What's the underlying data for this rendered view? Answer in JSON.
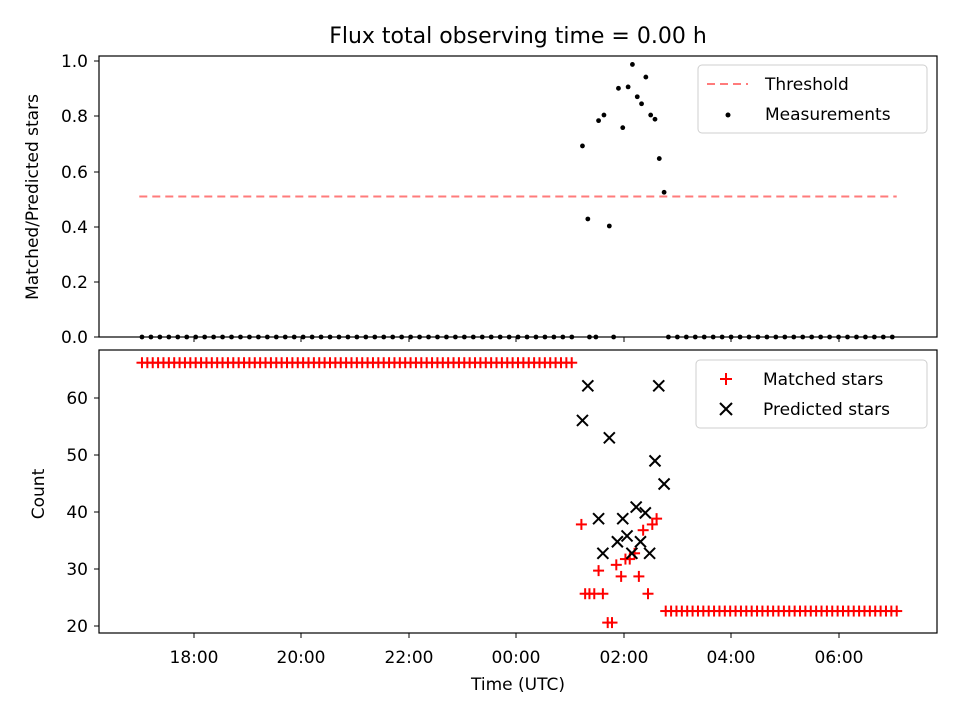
{
  "chart_data": [
    {
      "type": "scatter",
      "title": "Flux total observing time = 0.00 h",
      "xlabel": "",
      "ylabel": "Matched/Predicted stars",
      "ylim": [
        0,
        1.0
      ],
      "yticks": [
        "0.0",
        "0.2",
        "0.4",
        "0.6",
        "0.8",
        "1.0"
      ],
      "legend": {
        "placement": "top-right",
        "entries": [
          "Threshold",
          "Measurements"
        ]
      },
      "threshold": {
        "name": "Threshold",
        "value": 0.5,
        "x_start_h": -7.05,
        "x_end_h": 7.05,
        "color": "#ff7b7b"
      },
      "measurements_zero": {
        "name": "Measurements",
        "value": 0.0,
        "x_start_h": -7.0,
        "x_end_h": 1.05,
        "x_start2_h": 2.8,
        "x_end2_h": 7.1,
        "step_h": 0.1667
      },
      "measurements": [
        {
          "x_h": 1.2,
          "y": 0.68
        },
        {
          "x_h": 1.3,
          "y": 0.42
        },
        {
          "x_h": 1.33,
          "y": 0.0
        },
        {
          "x_h": 1.45,
          "y": 0.0
        },
        {
          "x_h": 1.5,
          "y": 0.77
        },
        {
          "x_h": 1.6,
          "y": 0.79
        },
        {
          "x_h": 1.7,
          "y": 0.395
        },
        {
          "x_h": 1.78,
          "y": 0.0
        },
        {
          "x_h": 1.87,
          "y": 0.885
        },
        {
          "x_h": 1.95,
          "y": 0.745
        },
        {
          "x_h": 2.05,
          "y": 0.89
        },
        {
          "x_h": 2.13,
          "y": 0.97
        },
        {
          "x_h": 2.22,
          "y": 0.855
        },
        {
          "x_h": 2.3,
          "y": 0.83
        },
        {
          "x_h": 2.38,
          "y": 0.925
        },
        {
          "x_h": 2.47,
          "y": 0.79
        },
        {
          "x_h": 2.55,
          "y": 0.775
        },
        {
          "x_h": 2.63,
          "y": 0.635
        },
        {
          "x_h": 2.72,
          "y": 0.515
        }
      ]
    },
    {
      "type": "scatter",
      "title": "",
      "xlabel": "Time (UTC)",
      "ylabel": "Count",
      "ylim": [
        19.2,
        68.2
      ],
      "yticks": [
        "20",
        "30",
        "40",
        "50",
        "60"
      ],
      "xlim_h": [
        -7.8,
        7.8
      ],
      "xticks": [
        "18:00",
        "20:00",
        "22:00",
        "00:00",
        "02:00",
        "04:00",
        "06:00"
      ],
      "legend": {
        "placement": "top-right",
        "entries": [
          "Matched stars",
          "Predicted stars"
        ]
      },
      "matched_constant": [
        {
          "value": 66,
          "x_start_h": -7.0,
          "x_end_h": 1.05,
          "step_h": 0.1
        },
        {
          "value": 23,
          "x_start_h": 2.75,
          "x_end_h": 7.1,
          "step_h": 0.1
        }
      ],
      "matched": [
        {
          "x_h": 1.18,
          "y": 38
        },
        {
          "x_h": 1.25,
          "y": 26
        },
        {
          "x_h": 1.33,
          "y": 26
        },
        {
          "x_h": 1.42,
          "y": 26
        },
        {
          "x_h": 1.5,
          "y": 30
        },
        {
          "x_h": 1.58,
          "y": 26
        },
        {
          "x_h": 1.67,
          "y": 21
        },
        {
          "x_h": 1.75,
          "y": 21
        },
        {
          "x_h": 1.83,
          "y": 31
        },
        {
          "x_h": 1.92,
          "y": 29
        },
        {
          "x_h": 2.0,
          "y": 32
        },
        {
          "x_h": 2.08,
          "y": 32
        },
        {
          "x_h": 2.17,
          "y": 33
        },
        {
          "x_h": 2.25,
          "y": 29
        },
        {
          "x_h": 2.33,
          "y": 37
        },
        {
          "x_h": 2.42,
          "y": 26
        },
        {
          "x_h": 2.5,
          "y": 38
        },
        {
          "x_h": 2.58,
          "y": 39
        }
      ],
      "predicted": [
        {
          "x_h": 1.2,
          "y": 56
        },
        {
          "x_h": 1.3,
          "y": 62
        },
        {
          "x_h": 1.5,
          "y": 39
        },
        {
          "x_h": 1.58,
          "y": 33
        },
        {
          "x_h": 1.7,
          "y": 53
        },
        {
          "x_h": 1.85,
          "y": 35
        },
        {
          "x_h": 1.95,
          "y": 39
        },
        {
          "x_h": 2.03,
          "y": 36
        },
        {
          "x_h": 2.12,
          "y": 33
        },
        {
          "x_h": 2.2,
          "y": 41
        },
        {
          "x_h": 2.28,
          "y": 35
        },
        {
          "x_h": 2.37,
          "y": 40
        },
        {
          "x_h": 2.45,
          "y": 33
        },
        {
          "x_h": 2.55,
          "y": 49
        },
        {
          "x_h": 2.62,
          "y": 62
        },
        {
          "x_h": 2.72,
          "y": 45
        }
      ]
    }
  ]
}
